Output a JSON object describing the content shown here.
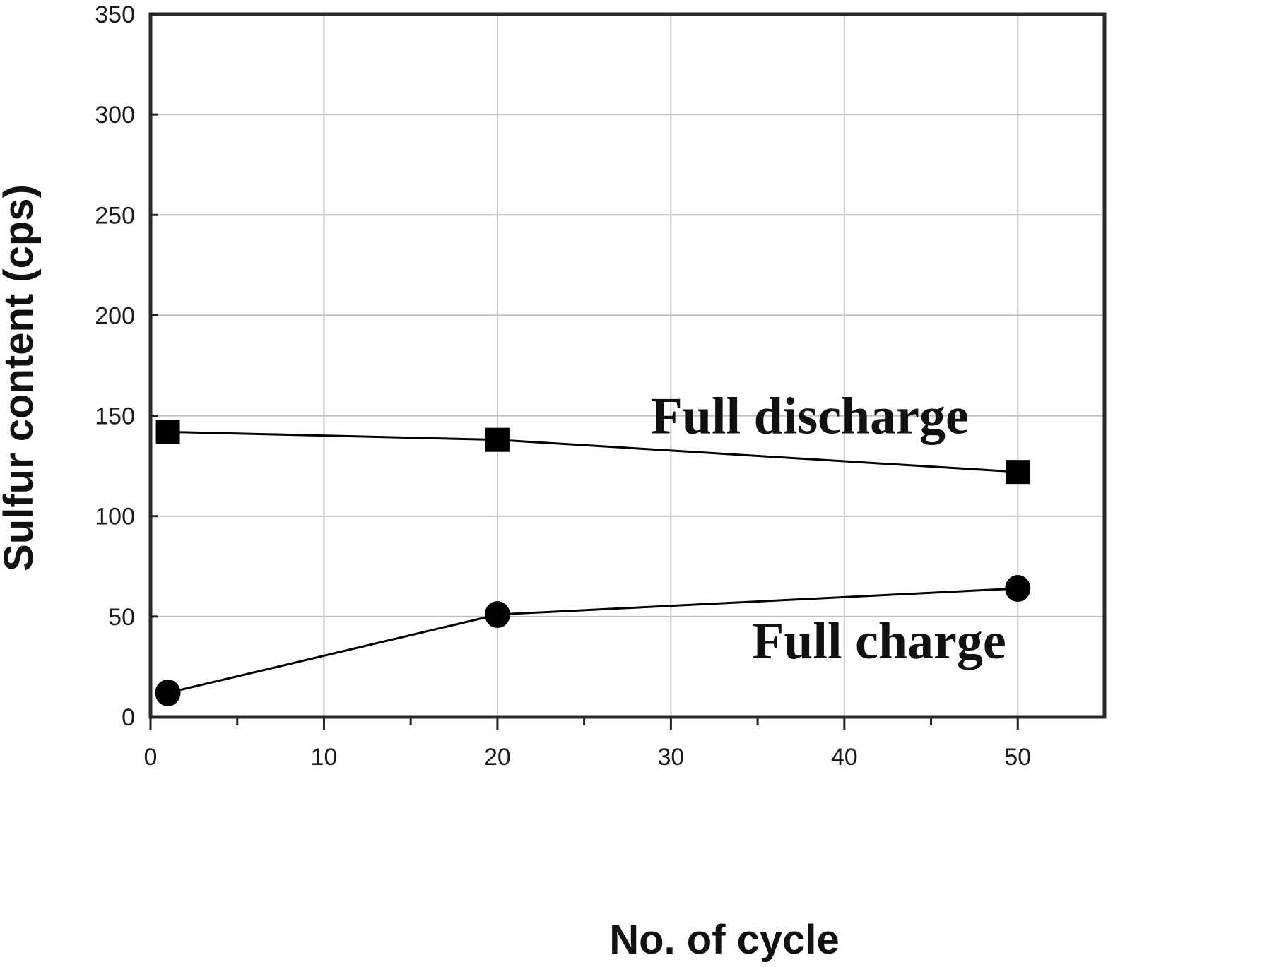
{
  "chart_data": {
    "type": "line",
    "title": "",
    "xlabel": "No. of cycle",
    "ylabel": "Sulfur content (cps)",
    "xlim": [
      0,
      55
    ],
    "ylim": [
      0,
      350
    ],
    "xticks": [
      0,
      10,
      20,
      30,
      40,
      50
    ],
    "yticks": [
      0,
      50,
      100,
      150,
      200,
      250,
      300,
      350
    ],
    "x_minor_ticks": [
      5,
      15,
      25,
      35,
      45
    ],
    "grid": true,
    "legend": null,
    "series": [
      {
        "name": "Full discharge",
        "marker": "square",
        "color": "#000000",
        "x": [
          1,
          20,
          50
        ],
        "values": [
          142,
          138,
          122
        ]
      },
      {
        "name": "Full charge",
        "marker": "circle",
        "color": "#000000",
        "x": [
          1,
          20,
          50
        ],
        "values": [
          12,
          51,
          64
        ]
      }
    ],
    "annotations": [
      {
        "text": "Full discharge",
        "x": 38,
        "y": 150
      },
      {
        "text": "Full charge",
        "x": 42,
        "y": 38
      }
    ]
  }
}
